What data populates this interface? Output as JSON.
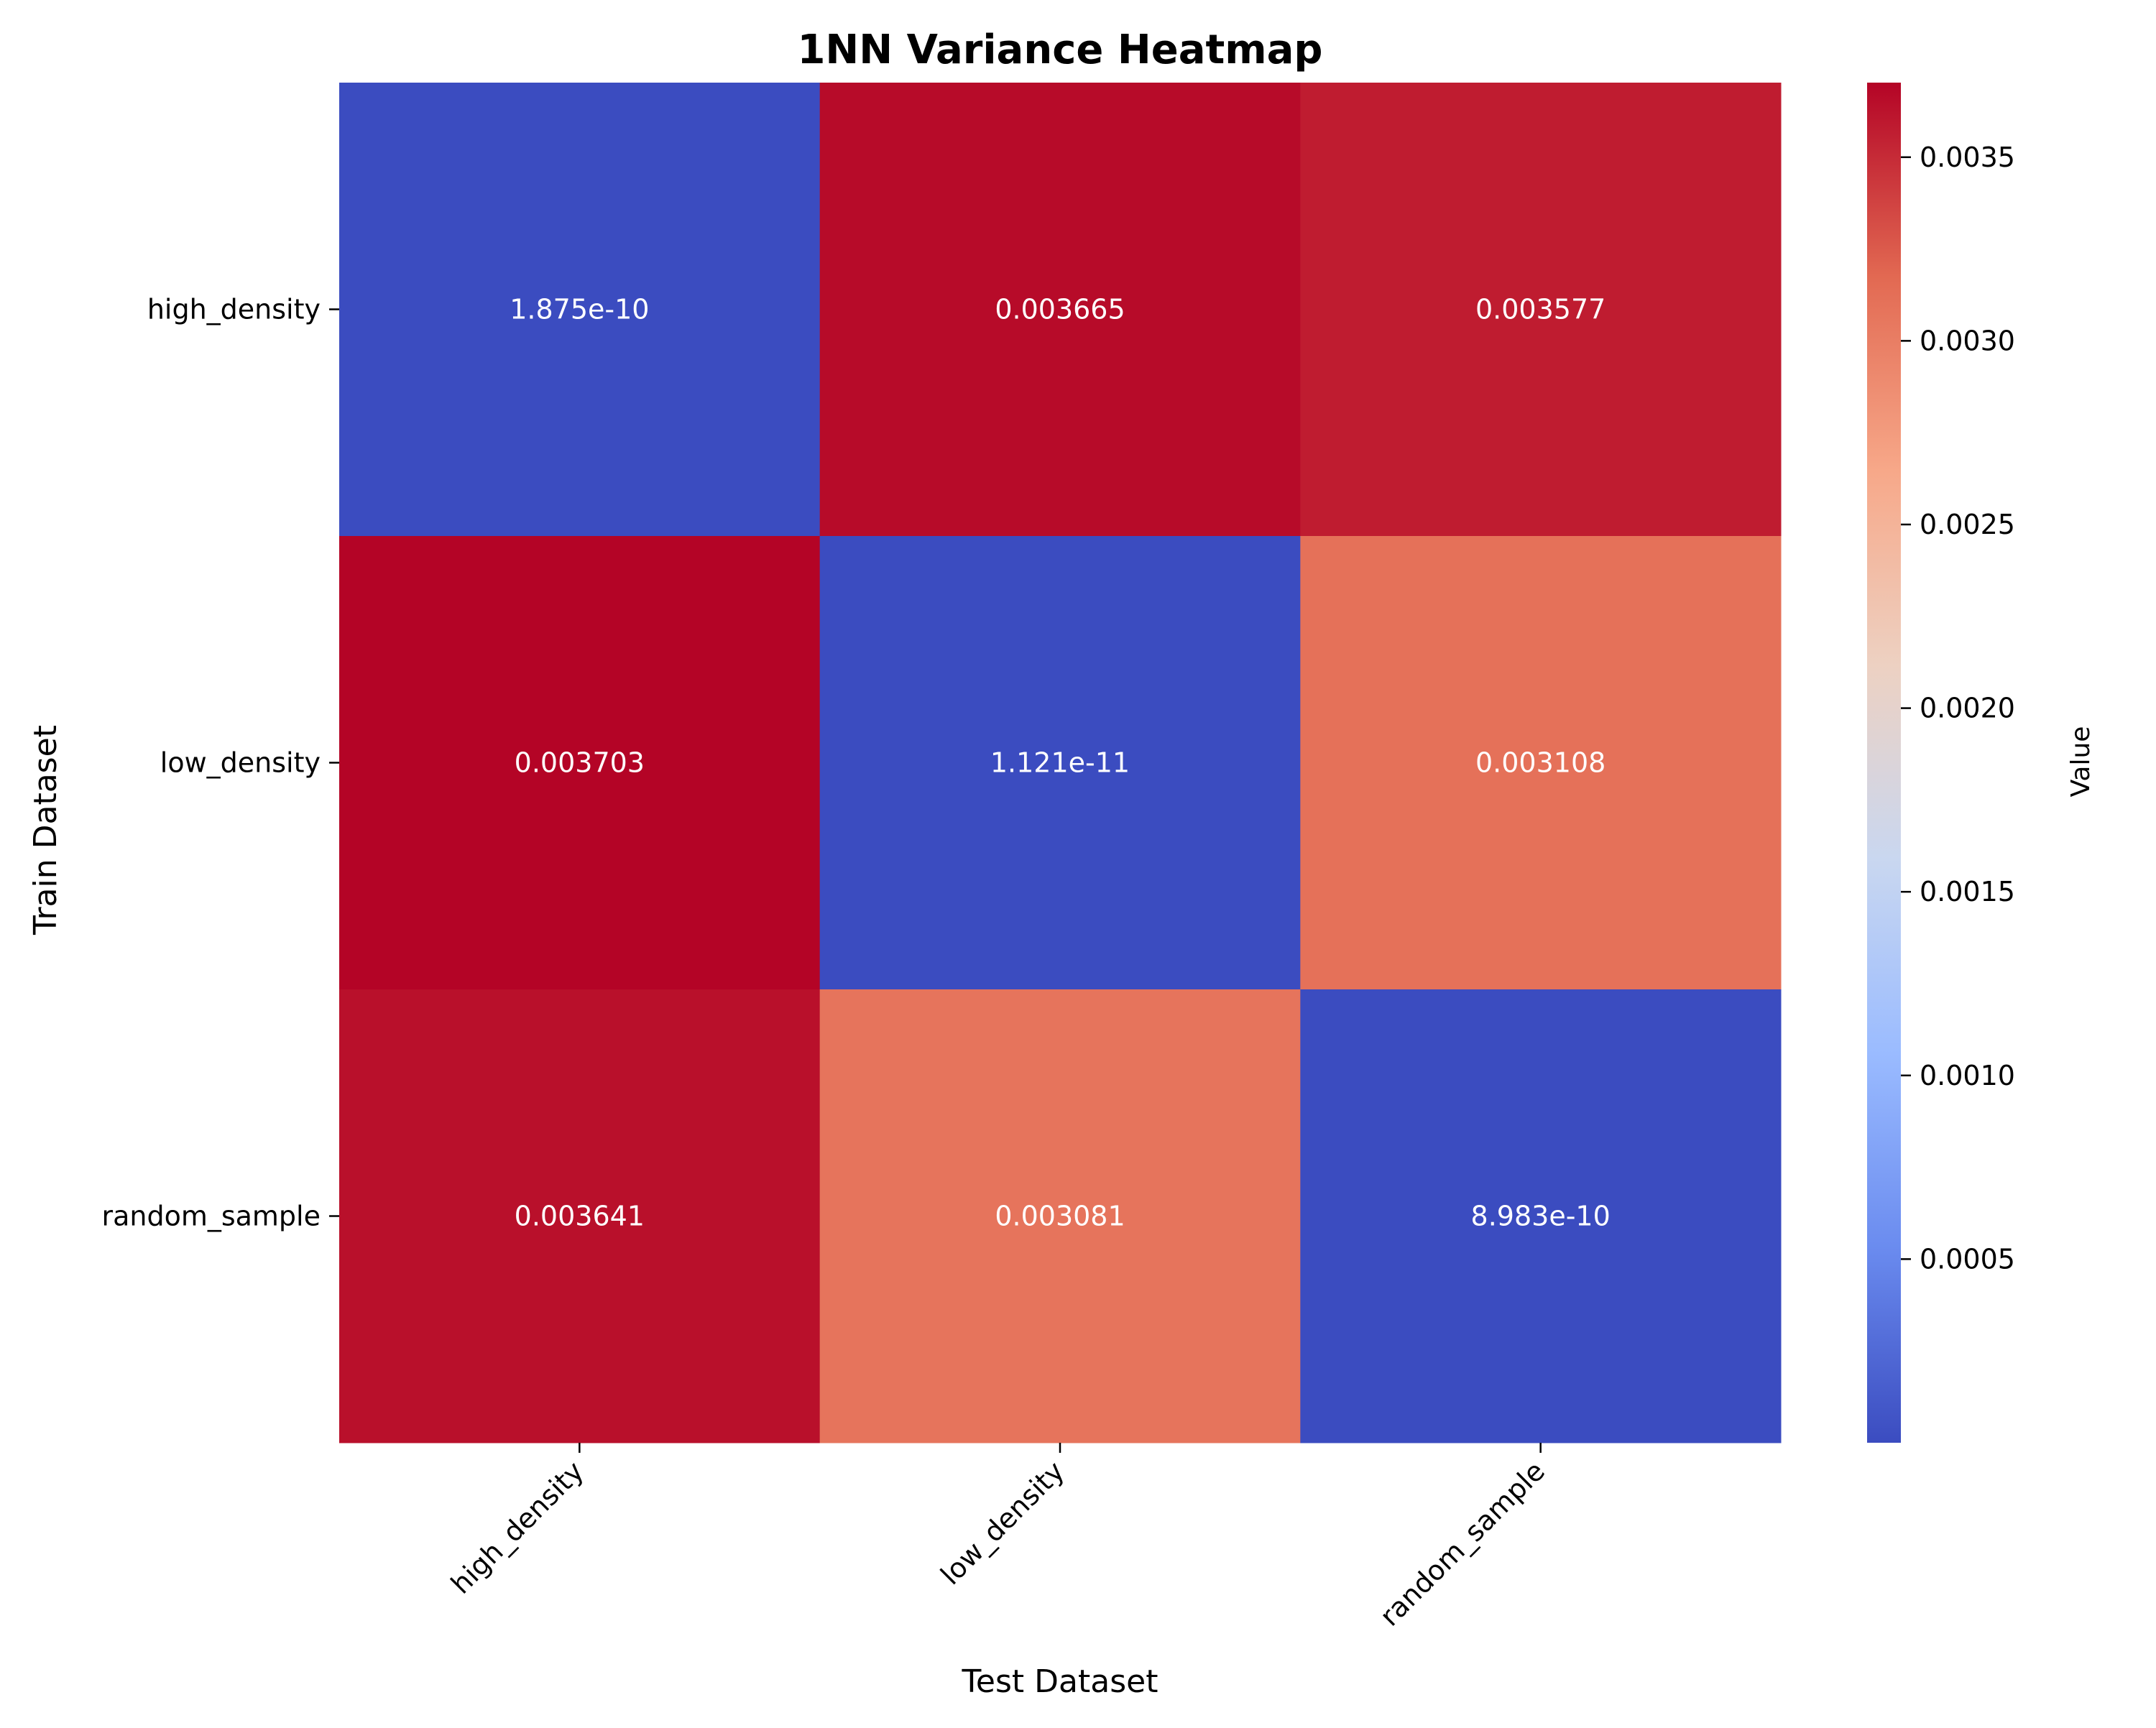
{
  "chart_data": {
    "type": "heatmap",
    "title": "1NN Variance Heatmap",
    "xlabel": "Test Dataset",
    "ylabel": "Train Dataset",
    "x_categories": [
      "high_density",
      "low_density",
      "random_sample"
    ],
    "y_categories": [
      "high_density",
      "low_density",
      "random_sample"
    ],
    "values": [
      [
        1.875e-10,
        0.003665,
        0.003577
      ],
      [
        0.003703,
        1.121e-11,
        0.003108
      ],
      [
        0.003641,
        0.003081,
        8.983e-10
      ]
    ],
    "cell_labels": [
      [
        "1.875e-10",
        "0.003665",
        "0.003577"
      ],
      [
        "0.003703",
        "1.121e-11",
        "0.003108"
      ],
      [
        "0.003641",
        "0.003081",
        "8.983e-10"
      ]
    ],
    "colormap": "coolwarm",
    "colormap_stops": [
      "#3b4cc0",
      "#6a8bef",
      "#9abbff",
      "#c9d7f0",
      "#edd1c2",
      "#f7a889",
      "#e26952",
      "#b40426"
    ],
    "colorbar": {
      "label": "Value",
      "range": [
        1.121e-11,
        0.003703
      ],
      "ticks": [
        0.0005,
        0.001,
        0.0015,
        0.002,
        0.0025,
        0.003,
        0.0035
      ],
      "tick_labels": [
        "0.0005",
        "0.0010",
        "0.0015",
        "0.0020",
        "0.0025",
        "0.0030",
        "0.0035"
      ]
    },
    "x_tick_rotation": 45,
    "grid": false,
    "legend": "colorbar-right"
  }
}
